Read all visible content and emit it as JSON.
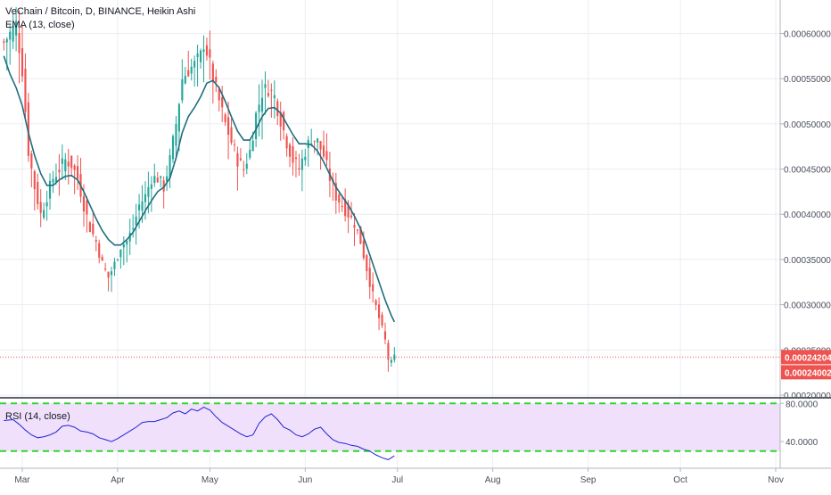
{
  "header": {
    "symbol_title": "VeChain / Bitcoin, D, BINANCE, Heikin Ashi",
    "ema_label": "EMA (13, close)",
    "rsi_label": "RSI (14, close)"
  },
  "colors": {
    "up": "#26a69a",
    "down": "#ef5350",
    "ema": "#1f6e80",
    "rsi": "#2323d8",
    "rsi_band_fill": "#f0e0fb",
    "rsi_band_line": "#31d631",
    "price_line": "#ef5350",
    "grid": "#e9eef2",
    "axis_text": "#4a4f5c"
  },
  "price_labels": {
    "current": "0.00024204",
    "secondary": "0.00024002"
  },
  "chart_data": [
    {
      "type": "candlestick",
      "title": "VeChain / Bitcoin, D, BINANCE, Heikin Ashi",
      "x_ticks": [
        "Mar",
        "Apr",
        "May",
        "Jun",
        "Jul",
        "Aug",
        "Sep",
        "Oct",
        "Nov"
      ],
      "x_tick_days": [
        1,
        32,
        62,
        93,
        123,
        154,
        185,
        215,
        246
      ],
      "y_ticks": [
        "0.00020000",
        "0.00025000",
        "0.00030000",
        "0.00035000",
        "0.00040000",
        "0.00045000",
        "0.00050000",
        "0.00055000",
        "0.00060000"
      ],
      "ylim": [
        0.000198,
        0.000637
      ],
      "current_price": 0.00024204,
      "close_anchors": [
        [
          -5,
          0.00059
        ],
        [
          -3,
          0.0006
        ],
        [
          -1,
          0.00061
        ],
        [
          1,
          0.00056
        ],
        [
          3,
          0.00047
        ],
        [
          5,
          0.00043
        ],
        [
          7,
          0.0004
        ],
        [
          9,
          0.00042
        ],
        [
          11,
          0.00044
        ],
        [
          13,
          0.00045
        ],
        [
          15,
          0.00046
        ],
        [
          17,
          0.000455
        ],
        [
          19,
          0.00044
        ],
        [
          21,
          0.00041
        ],
        [
          23,
          0.000385
        ],
        [
          25,
          0.00037
        ],
        [
          27,
          0.000345
        ],
        [
          29,
          0.00033
        ],
        [
          31,
          0.000345
        ],
        [
          33,
          0.000365
        ],
        [
          35,
          0.00037
        ],
        [
          37,
          0.000385
        ],
        [
          39,
          0.00041
        ],
        [
          41,
          0.00042
        ],
        [
          43,
          0.00044
        ],
        [
          45,
          0.00044
        ],
        [
          47,
          0.00043
        ],
        [
          49,
          0.00046
        ],
        [
          51,
          0.0005
        ],
        [
          53,
          0.00055
        ],
        [
          55,
          0.00056
        ],
        [
          57,
          0.000565
        ],
        [
          59,
          0.000575
        ],
        [
          60,
          0.00059
        ],
        [
          61,
          0.00058
        ],
        [
          63,
          0.00055
        ],
        [
          65,
          0.000525
        ],
        [
          67,
          0.0005
        ],
        [
          69,
          0.00048
        ],
        [
          71,
          0.00046
        ],
        [
          73,
          0.00045
        ],
        [
          75,
          0.00047
        ],
        [
          77,
          0.00051
        ],
        [
          79,
          0.000535
        ],
        [
          81,
          0.00054
        ],
        [
          83,
          0.00053
        ],
        [
          85,
          0.000505
        ],
        [
          87,
          0.00048
        ],
        [
          89,
          0.00046
        ],
        [
          91,
          0.00045
        ],
        [
          93,
          0.00047
        ],
        [
          95,
          0.000485
        ],
        [
          97,
          0.00048
        ],
        [
          99,
          0.000465
        ],
        [
          101,
          0.00044
        ],
        [
          103,
          0.00042
        ],
        [
          105,
          0.00041
        ],
        [
          107,
          0.0004
        ],
        [
          109,
          0.00039
        ],
        [
          111,
          0.00037
        ],
        [
          113,
          0.00034
        ],
        [
          115,
          0.00031
        ],
        [
          117,
          0.000285
        ],
        [
          119,
          0.00026
        ],
        [
          120,
          0.00024
        ],
        [
          121,
          0.000235
        ],
        [
          122,
          0.000242
        ]
      ],
      "ema": {
        "name": "EMA (13, close)",
        "points": [
          [
            -5,
            0.000575
          ],
          [
            -3,
            0.000555
          ],
          [
            -1,
            0.00054
          ],
          [
            1,
            0.00052
          ],
          [
            3,
            0.00049
          ],
          [
            5,
            0.000465
          ],
          [
            7,
            0.000445
          ],
          [
            9,
            0.000432
          ],
          [
            11,
            0.000432
          ],
          [
            13,
            0.000438
          ],
          [
            15,
            0.000442
          ],
          [
            17,
            0.000443
          ],
          [
            19,
            0.000438
          ],
          [
            21,
            0.000425
          ],
          [
            23,
            0.00041
          ],
          [
            25,
            0.000395
          ],
          [
            27,
            0.000382
          ],
          [
            29,
            0.000372
          ],
          [
            31,
            0.000366
          ],
          [
            33,
            0.000366
          ],
          [
            35,
            0.000372
          ],
          [
            37,
            0.00038
          ],
          [
            39,
            0.000392
          ],
          [
            41,
            0.000404
          ],
          [
            43,
            0.000415
          ],
          [
            45,
            0.000425
          ],
          [
            47,
            0.00043
          ],
          [
            49,
            0.00044
          ],
          [
            51,
            0.000462
          ],
          [
            53,
            0.00049
          ],
          [
            55,
            0.000508
          ],
          [
            57,
            0.000518
          ],
          [
            59,
            0.00053
          ],
          [
            61,
            0.000545
          ],
          [
            63,
            0.000548
          ],
          [
            65,
            0.00054
          ],
          [
            67,
            0.000525
          ],
          [
            69,
            0.000508
          ],
          [
            71,
            0.000492
          ],
          [
            73,
            0.000482
          ],
          [
            75,
            0.000482
          ],
          [
            77,
            0.000494
          ],
          [
            79,
            0.000508
          ],
          [
            81,
            0.000517
          ],
          [
            83,
            0.000518
          ],
          [
            85,
            0.000512
          ],
          [
            87,
            0.0005
          ],
          [
            89,
            0.000488
          ],
          [
            91,
            0.000478
          ],
          [
            93,
            0.000478
          ],
          [
            95,
            0.000477
          ],
          [
            97,
            0.00047
          ],
          [
            99,
            0.000458
          ],
          [
            101,
            0.000444
          ],
          [
            103,
            0.00043
          ],
          [
            105,
            0.00042
          ],
          [
            107,
            0.00041
          ],
          [
            109,
            0.000398
          ],
          [
            111,
            0.000384
          ],
          [
            113,
            0.000365
          ],
          [
            115,
            0.000345
          ],
          [
            117,
            0.000325
          ],
          [
            119,
            0.000305
          ],
          [
            121,
            0.000288
          ],
          [
            122,
            0.000281
          ]
        ]
      }
    },
    {
      "type": "line",
      "title": "RSI (14, close)",
      "y_ticks": [
        "80.0000",
        "40.0000"
      ],
      "ylim": [
        12,
        84
      ],
      "band": [
        30,
        80
      ],
      "series": [
        {
          "name": "RSI (14, close)",
          "points": [
            [
              -5,
              62
            ],
            [
              -2,
              63
            ],
            [
              0,
              58
            ],
            [
              2,
              52
            ],
            [
              4,
              47
            ],
            [
              6,
              44
            ],
            [
              8,
              45
            ],
            [
              10,
              47
            ],
            [
              12,
              50
            ],
            [
              14,
              56
            ],
            [
              16,
              57
            ],
            [
              18,
              55
            ],
            [
              20,
              51
            ],
            [
              22,
              50
            ],
            [
              24,
              48
            ],
            [
              26,
              44
            ],
            [
              28,
              42
            ],
            [
              30,
              40
            ],
            [
              32,
              43
            ],
            [
              34,
              47
            ],
            [
              36,
              51
            ],
            [
              38,
              55
            ],
            [
              40,
              60
            ],
            [
              42,
              61
            ],
            [
              44,
              61
            ],
            [
              46,
              63
            ],
            [
              48,
              65
            ],
            [
              50,
              70
            ],
            [
              52,
              72
            ],
            [
              54,
              69
            ],
            [
              56,
              74
            ],
            [
              58,
              72
            ],
            [
              60,
              76
            ],
            [
              62,
              73
            ],
            [
              64,
              66
            ],
            [
              66,
              60
            ],
            [
              68,
              56
            ],
            [
              70,
              52
            ],
            [
              72,
              48
            ],
            [
              74,
              45
            ],
            [
              76,
              47
            ],
            [
              78,
              59
            ],
            [
              80,
              66
            ],
            [
              82,
              69
            ],
            [
              84,
              63
            ],
            [
              86,
              55
            ],
            [
              88,
              52
            ],
            [
              90,
              47
            ],
            [
              92,
              45
            ],
            [
              94,
              48
            ],
            [
              96,
              53
            ],
            [
              98,
              55
            ],
            [
              100,
              48
            ],
            [
              102,
              42
            ],
            [
              104,
              39
            ],
            [
              106,
              38
            ],
            [
              108,
              36
            ],
            [
              110,
              35
            ],
            [
              112,
              32
            ],
            [
              114,
              30
            ],
            [
              116,
              26
            ],
            [
              118,
              23
            ],
            [
              120,
              21
            ],
            [
              122,
              25
            ]
          ]
        }
      ]
    }
  ]
}
